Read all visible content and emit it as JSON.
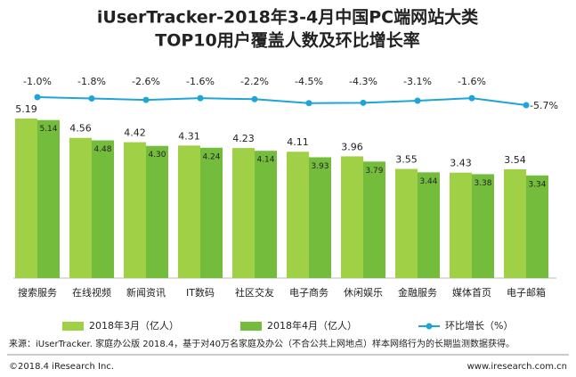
{
  "chart_data": {
    "type": "bar_line",
    "title": [
      "iUserTracker-2018年3-4月中国PC端网站大类",
      "TOP10用户覆盖人数及环比增长率"
    ],
    "categories": [
      "搜索服务",
      "在线视频",
      "新闻资讯",
      "IT数码",
      "社区交友",
      "电子商务",
      "休闲娱乐",
      "金融服务",
      "媒体首页",
      "电子邮箱"
    ],
    "series": [
      {
        "name": "2018年3月（亿人）",
        "type": "bar",
        "color": "#9fd045",
        "values": [
          5.19,
          4.56,
          4.42,
          4.31,
          4.23,
          4.11,
          3.96,
          3.55,
          3.43,
          3.54
        ]
      },
      {
        "name": "2018年4月（亿人）",
        "type": "bar",
        "color": "#74bd3c",
        "values": [
          5.14,
          4.48,
          4.3,
          4.24,
          4.14,
          3.93,
          3.79,
          3.44,
          3.38,
          3.34
        ],
        "value_labels": [
          "5.14",
          "4.48",
          "4.30",
          "4.24",
          "4.14",
          "3.93",
          "3.79",
          "3.44",
          "3.38",
          "3.34"
        ]
      },
      {
        "name": "环比增长（%）",
        "type": "line",
        "axis": "y2",
        "color": "#1ea5d8",
        "values": [
          -1.0,
          -1.8,
          -2.6,
          -1.6,
          -2.2,
          -4.5,
          -4.3,
          -3.1,
          -1.6,
          -5.7
        ],
        "value_labels": [
          "-1.0%",
          "-1.8%",
          "-2.6%",
          "-1.6%",
          "-2.2%",
          "-4.5%",
          "-4.3%",
          "-3.1%",
          "-1.6%",
          "-5.7%"
        ]
      }
    ],
    "source": "来源：iUserTracker. 家庭办公版 2018.4，基于对40万名家庭及办公（不合公共上网地点）样本网络行为的长期监测数据获得。",
    "copyright": "©2018.4 iResearch Inc.",
    "website": "www.iresearch.com.cn"
  }
}
